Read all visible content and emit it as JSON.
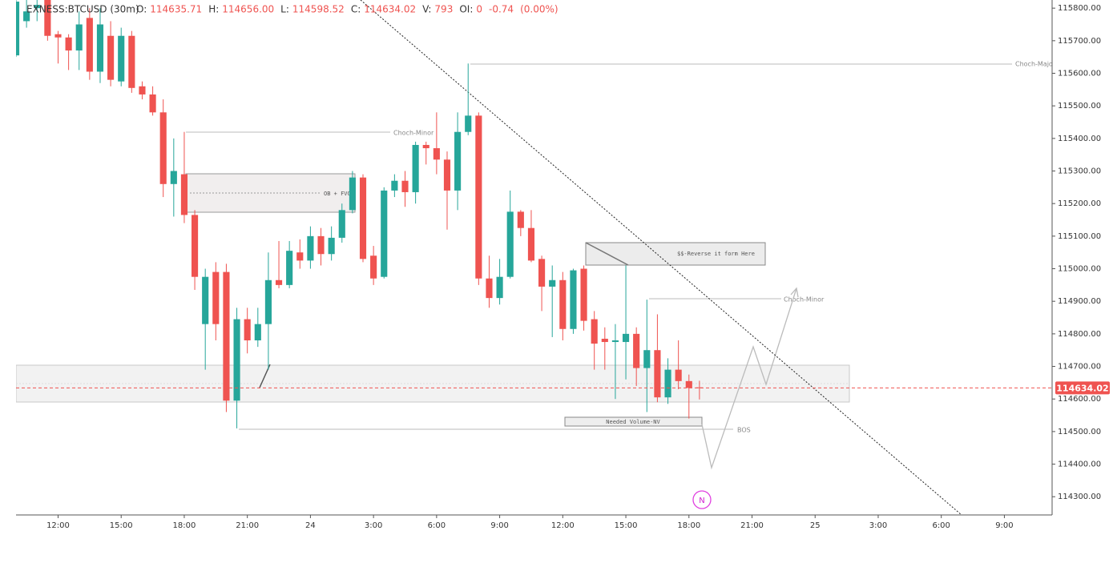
{
  "header": {
    "symbol": "EXNESS:BTCUSD (30m)",
    "fields": [
      {
        "label": "O:",
        "value": "114635.71"
      },
      {
        "label": "H:",
        "value": "114656.00"
      },
      {
        "label": "L:",
        "value": "114598.52"
      },
      {
        "label": "C:",
        "value": "114634.02"
      },
      {
        "label": "V:",
        "value": "793"
      },
      {
        "label": "OI:",
        "value": "0"
      }
    ],
    "change": "-0.74",
    "change_pct": "(0.00%)"
  },
  "annotations": {
    "choch_minor_1": "Choch-Minor",
    "choch_major": "Choch-Major",
    "ob_fvg": "OB + FVG",
    "reverse": "$$-Reverse it form Here",
    "choch_minor_2": "Choch-Minor",
    "needed_volume": "Needed Volume-NV",
    "bos": "BOS",
    "badge": "N"
  },
  "chart_data": {
    "type": "candlestick",
    "up_color": "#26a69a",
    "down_color": "#ef5350",
    "grid": false,
    "x": [
      10,
      10.5,
      11,
      11.5,
      12,
      12.5,
      13,
      13.5,
      14,
      14.5,
      15,
      15.5,
      16,
      16.5,
      17,
      17.5,
      18,
      18.5,
      19,
      19.5,
      20,
      20.5,
      21,
      21.5,
      22,
      22.5,
      23,
      23.5,
      24,
      24.5,
      25,
      25.5,
      26,
      26.5,
      27,
      27.5,
      28,
      28.5,
      29,
      29.5,
      30,
      30.5,
      31,
      31.5,
      32,
      32.5,
      33,
      33.5,
      34,
      34.5,
      35,
      35.5,
      36,
      36.5,
      37,
      37.5,
      38,
      38.5,
      39,
      39.5,
      40,
      40.5,
      41,
      41.5,
      42,
      42.5
    ],
    "open": [
      115655,
      115760,
      115800,
      115830,
      115720,
      115710,
      115670,
      115770,
      115605,
      115715,
      115575,
      115715,
      115560,
      115535,
      115480,
      115260,
      115290,
      115165,
      114830,
      114990,
      114990,
      114595,
      114845,
      114780,
      114830,
      114965,
      114950,
      115050,
      115025,
      115100,
      115045,
      115095,
      115180,
      115280,
      115040,
      114975,
      115240,
      115270,
      115235,
      115380,
      115370,
      115335,
      115240,
      115420,
      115470,
      114970,
      114910,
      114975,
      115175,
      115125,
      115030,
      114945,
      114965,
      114815,
      115000,
      114845,
      114785,
      114775,
      114775,
      114800,
      114695,
      114750,
      114605,
      114690,
      114655,
      114635.71
    ],
    "high": [
      115840,
      115830,
      115830,
      115840,
      115730,
      115720,
      115790,
      115800,
      115800,
      115760,
      115740,
      115730,
      115575,
      115560,
      115520,
      115400,
      115420,
      115180,
      115000,
      115020,
      115015,
      114880,
      114880,
      114880,
      115050,
      115085,
      115085,
      115090,
      115130,
      115125,
      115130,
      115200,
      115300,
      115290,
      115070,
      115250,
      115290,
      115300,
      115390,
      115390,
      115480,
      115360,
      115480,
      115630,
      115480,
      115040,
      115030,
      115240,
      115180,
      115180,
      115040,
      115010,
      114990,
      115000,
      115010,
      114870,
      114820,
      114830,
      115010,
      114820,
      114905,
      114860,
      114725,
      114780,
      114675,
      114656
    ],
    "low": [
      115650,
      115740,
      115760,
      115700,
      115630,
      115610,
      115610,
      115580,
      115570,
      115560,
      115560,
      115540,
      115520,
      115470,
      115220,
      115160,
      115140,
      114935,
      114690,
      114780,
      114560,
      114510,
      114740,
      114760,
      114690,
      114940,
      114940,
      115000,
      115000,
      115010,
      115025,
      115080,
      115170,
      115020,
      114950,
      114970,
      115220,
      115190,
      115200,
      115320,
      115290,
      115120,
      115180,
      115410,
      114950,
      114880,
      114890,
      114970,
      115100,
      115020,
      114870,
      114790,
      114780,
      114800,
      114810,
      114690,
      114690,
      114600,
      114660,
      114640,
      114560,
      114590,
      114585,
      114630,
      114540,
      114598.52
    ],
    "close": [
      115820,
      115790,
      115810,
      115715,
      115710,
      115670,
      115750,
      115605,
      115750,
      115580,
      115715,
      115555,
      115535,
      115480,
      115260,
      115300,
      115165,
      114975,
      114975,
      114830,
      114595,
      114845,
      114780,
      114830,
      114965,
      114950,
      115055,
      115025,
      115100,
      115045,
      115095,
      115180,
      115280,
      115030,
      114970,
      115240,
      115270,
      115235,
      115380,
      115370,
      115335,
      115240,
      115420,
      115470,
      114970,
      114910,
      114975,
      115175,
      115125,
      115025,
      114945,
      114965,
      114815,
      114995,
      114840,
      114770,
      114775,
      114780,
      114800,
      114695,
      114750,
      114605,
      114690,
      114655,
      114634,
      114634.02
    ],
    "last_price": {
      "value": 114634.02,
      "label": "114634.02"
    },
    "xlim": [
      10,
      59.27
    ],
    "xticks": [
      {
        "value": 12,
        "label": "12:00"
      },
      {
        "value": 15,
        "label": "15:00"
      },
      {
        "value": 18,
        "label": "18:00"
      },
      {
        "value": 21,
        "label": "21:00"
      },
      24,
      {
        "value": 27,
        "label": "3:00"
      },
      {
        "value": 30,
        "label": "6:00"
      },
      {
        "value": 33,
        "label": "9:00"
      },
      {
        "value": 36,
        "label": "12:00"
      },
      {
        "value": 39,
        "label": "15:00"
      },
      {
        "value": 42,
        "label": "18:00"
      },
      {
        "value": 45,
        "label": "21:00"
      },
      {
        "value": 48,
        "label": "25"
      },
      {
        "value": 51,
        "label": "3:00"
      },
      {
        "value": 54,
        "label": "6:00"
      },
      {
        "value": 57,
        "label": "9:00"
      }
    ],
    "ylim": [
      114244,
      115825
    ],
    "yticks": [
      {
        "value": 114300,
        "label": "114300.00"
      },
      {
        "value": 114400,
        "label": "114400.00"
      },
      {
        "value": 114500,
        "label": "114500.00"
      },
      {
        "value": 114600,
        "label": "114600.00"
      },
      {
        "value": 114700,
        "label": "114700.00"
      },
      {
        "value": 114800,
        "label": "114800.00"
      },
      {
        "value": 114900,
        "label": "114900.00"
      },
      {
        "value": 115000,
        "label": "115000.00"
      },
      {
        "value": 115100,
        "label": "115100.00"
      },
      {
        "value": 115200,
        "label": "115200.00"
      },
      {
        "value": 115300,
        "label": "115300.00"
      },
      {
        "value": 115400,
        "label": "115400.00"
      },
      {
        "value": 115500,
        "label": "115500.00"
      },
      {
        "value": 115600,
        "label": "115600.00"
      },
      {
        "value": 115700,
        "label": "115700.00"
      },
      {
        "value": 115800,
        "label": "115800.00"
      }
    ]
  }
}
